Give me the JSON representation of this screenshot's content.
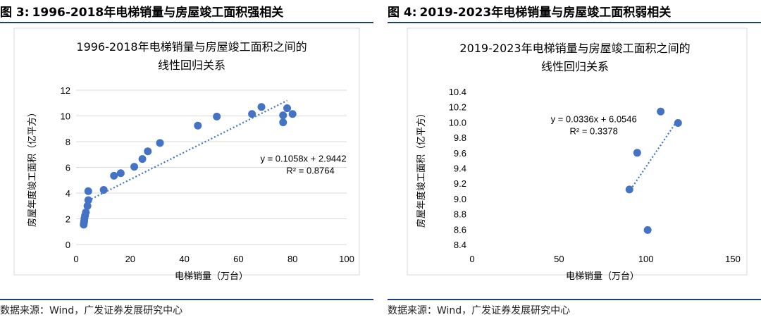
{
  "panels": [
    {
      "figure_prefix": "图 3:",
      "figure_title": "1996-2018年电梯销量与房屋竣工面积强相关",
      "source": "数据来源：Wind，广发证券发展研究中心"
    },
    {
      "figure_prefix": "图 4:",
      "figure_title": "2019-2023年电梯销量与房屋竣工面积弱相关",
      "source": "数据来源：Wind，广发证券发展研究中心"
    }
  ],
  "colors": {
    "marker": "#4472c4",
    "rule": "#1f3d7a",
    "grid": "#d9d9d9"
  },
  "chart_data": [
    {
      "type": "scatter",
      "title": [
        "1996-2018年电梯销量与房屋竣工面积之间的",
        "线性回归关系"
      ],
      "xlabel": "电梯销量（万台）",
      "ylabel": "房屋年度竣工面积（亿平方）",
      "xlim": [
        0,
        100
      ],
      "ylim": [
        0,
        12
      ],
      "xticks": [
        0,
        20,
        40,
        60,
        80,
        100
      ],
      "yticks": [
        0,
        2,
        4,
        6,
        8,
        10,
        12
      ],
      "grid": "horizontal",
      "points": [
        {
          "x": 2.8,
          "y": 1.55
        },
        {
          "x": 2.9,
          "y": 1.7
        },
        {
          "x": 3.0,
          "y": 1.85
        },
        {
          "x": 3.1,
          "y": 2.05
        },
        {
          "x": 3.3,
          "y": 2.25
        },
        {
          "x": 3.6,
          "y": 2.5
        },
        {
          "x": 4.2,
          "y": 3.0
        },
        {
          "x": 4.5,
          "y": 3.45
        },
        {
          "x": 4.5,
          "y": 4.15
        },
        {
          "x": 10.2,
          "y": 4.25
        },
        {
          "x": 14.0,
          "y": 5.35
        },
        {
          "x": 16.5,
          "y": 5.55
        },
        {
          "x": 21.5,
          "y": 6.05
        },
        {
          "x": 24.5,
          "y": 6.65
        },
        {
          "x": 26.5,
          "y": 7.25
        },
        {
          "x": 31.0,
          "y": 7.9
        },
        {
          "x": 45.0,
          "y": 9.25
        },
        {
          "x": 52.0,
          "y": 9.95
        },
        {
          "x": 65.0,
          "y": 10.15
        },
        {
          "x": 68.5,
          "y": 10.7
        },
        {
          "x": 76.5,
          "y": 10.05
        },
        {
          "x": 76.5,
          "y": 9.5
        },
        {
          "x": 78.0,
          "y": 10.6
        },
        {
          "x": 80.0,
          "y": 10.15
        }
      ],
      "trendline": {
        "slope": 0.1058,
        "intercept": 2.9442,
        "x_range": [
          4.5,
          78
        ]
      },
      "annotations": [
        "y = 0.1058x + 2.9442",
        "R² = 0.8764"
      ],
      "annotation_data_pos": {
        "x": 84,
        "y": 6.45
      }
    },
    {
      "type": "scatter",
      "title": [
        "2019-2023年电梯销量与房屋竣工面积之间的",
        "线性回归关系"
      ],
      "xlabel": "电梯销量（万台）",
      "ylabel": "房屋年度竣工面积（亿平方）",
      "xlim": [
        0,
        150
      ],
      "ylim": [
        8.4,
        10.4
      ],
      "xticks": [
        0,
        50,
        100,
        150
      ],
      "yticks": [
        8.4,
        8.6,
        8.8,
        9.0,
        9.2,
        9.4,
        9.6,
        9.8,
        10.0,
        10.2,
        10.4
      ],
      "grid": "none",
      "points": [
        {
          "x": 90.5,
          "y": 9.12
        },
        {
          "x": 95.0,
          "y": 9.6
        },
        {
          "x": 101.0,
          "y": 8.59
        },
        {
          "x": 108.5,
          "y": 10.14
        },
        {
          "x": 118.5,
          "y": 9.99
        }
      ],
      "trendline": {
        "slope": 0.0336,
        "intercept": 6.0546,
        "x_range": [
          90,
          118.5
        ]
      },
      "annotations": [
        "y = 0.0336x + 6.0546",
        "R² = 0.3378"
      ],
      "annotation_data_pos": {
        "x": 70,
        "y": 10.0
      }
    }
  ]
}
